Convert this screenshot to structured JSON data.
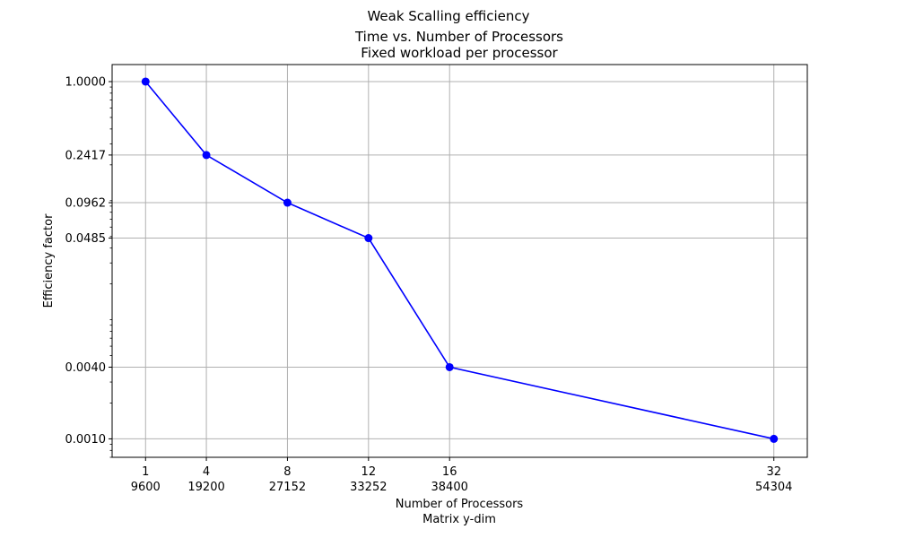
{
  "figure": {
    "suptitle": "Weak Scalling efficiency",
    "title_line1": "Time vs. Number of Processors",
    "title_line2": "Fixed workload per processor"
  },
  "chart_data": {
    "type": "line",
    "x": [
      1,
      4,
      8,
      12,
      16,
      32
    ],
    "x_tick_labels_primary": [
      "1",
      "4",
      "8",
      "12",
      "16",
      "32"
    ],
    "x_tick_labels_secondary": [
      "9600",
      "19200",
      "27152",
      "33252",
      "38400",
      "54304"
    ],
    "y": [
      1.0,
      0.2417,
      0.0962,
      0.0485,
      0.004,
      0.001
    ],
    "y_tick_values": [
      1.0,
      0.2417,
      0.0962,
      0.0485,
      0.004,
      0.001
    ],
    "y_tick_labels": [
      "1.0000",
      "0.2417",
      "0.0962",
      "0.0485",
      "0.0040",
      "0.0010"
    ],
    "xlabel_line1": "Number of Processors",
    "xlabel_line2": "Matrix y-dim",
    "ylabel": "Efficiency factor",
    "yscale": "log",
    "xlim": [
      -0.65,
      33.65
    ],
    "ylim": [
      0.0007,
      1.39
    ],
    "grid": true,
    "line_color": "#0000ff",
    "marker": "circle"
  }
}
